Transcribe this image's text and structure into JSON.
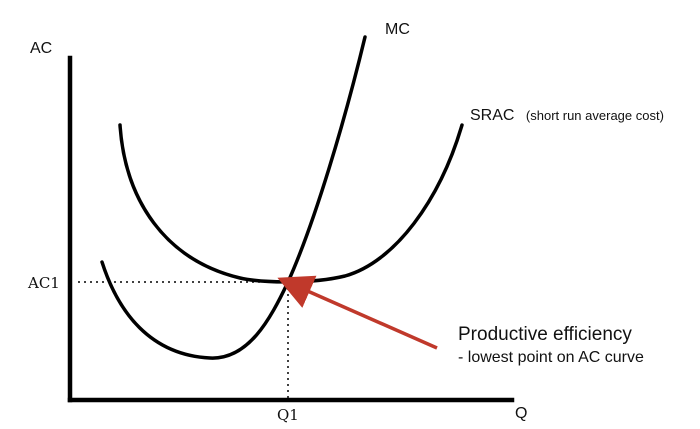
{
  "axes": {
    "y_label": "AC",
    "x_label": "Q"
  },
  "curves": {
    "mc": {
      "label": "MC"
    },
    "srac": {
      "label": "SRAC",
      "note": "(short run average cost)"
    }
  },
  "markers": {
    "ac1": "AC1",
    "q1": "Q1"
  },
  "annotation": {
    "title": "Productive efficiency",
    "subtitle": "- lowest point on AC curve",
    "arrow_color": "#c0392b"
  }
}
